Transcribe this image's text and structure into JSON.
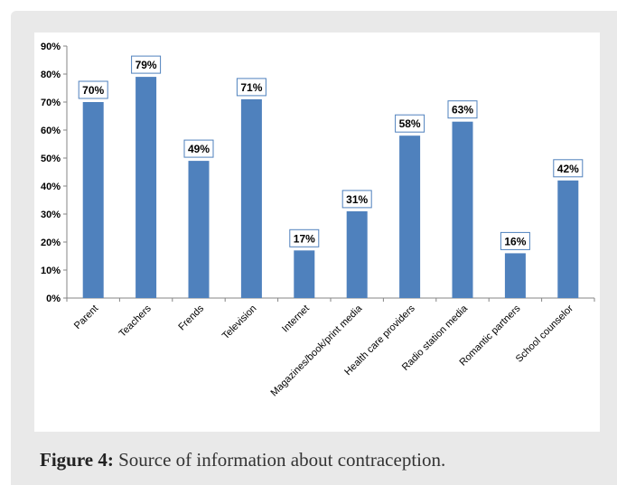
{
  "chart_data": {
    "type": "bar",
    "categories": [
      "Parent",
      "Teachers",
      "Frends",
      "Television",
      "Internet",
      "Magazines/book/print media",
      "Health care providers",
      "Radio station media",
      "Romantic partners",
      "School counselor"
    ],
    "values": [
      70,
      79,
      49,
      71,
      17,
      31,
      58,
      63,
      16,
      42
    ],
    "data_labels": [
      "70%",
      "79%",
      "49%",
      "71%",
      "17%",
      "31%",
      "58%",
      "63%",
      "16%",
      "42%"
    ],
    "y_ticks": [
      "0%",
      "10%",
      "20%",
      "30%",
      "40%",
      "50%",
      "60%",
      "70%",
      "80%",
      "90%"
    ],
    "ylim": [
      0,
      90
    ],
    "grid": false,
    "bar_color": "#4f81bd",
    "label_border_color": "#4f81bd"
  },
  "caption": {
    "label": "Figure 4:",
    "text": "Source of information about contraception."
  }
}
